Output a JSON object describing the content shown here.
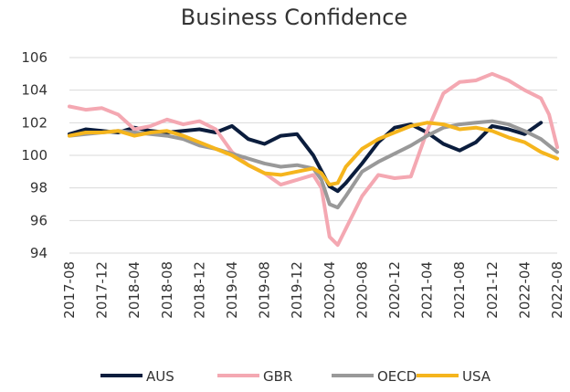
{
  "chart_data": {
    "type": "line",
    "title": "Business Confidence",
    "xlabel": "",
    "ylabel": "",
    "x_ticks": [
      "2017-08",
      "2017-12",
      "2018-04",
      "2018-08",
      "2018-12",
      "2019-04",
      "2019-08",
      "2019-12",
      "2020-04",
      "2020-08",
      "2020-12",
      "2021-04",
      "2021-08",
      "2021-12",
      "2022-04",
      "2022-08"
    ],
    "y_ticks": [
      94,
      96,
      98,
      100,
      102,
      104,
      106
    ],
    "ylim": [
      94,
      106
    ],
    "grid": "horizontal",
    "legend_position": "bottom",
    "series": [
      {
        "name": "AUS",
        "color": "#0b1d3d",
        "points": [
          [
            "2017-08",
            101.3
          ],
          [
            "2017-10",
            101.6
          ],
          [
            "2017-12",
            101.5
          ],
          [
            "2018-02",
            101.4
          ],
          [
            "2018-04",
            101.7
          ],
          [
            "2018-06",
            101.5
          ],
          [
            "2018-08",
            101.4
          ],
          [
            "2018-10",
            101.5
          ],
          [
            "2018-12",
            101.6
          ],
          [
            "2019-02",
            101.4
          ],
          [
            "2019-04",
            101.8
          ],
          [
            "2019-06",
            101.0
          ],
          [
            "2019-08",
            100.7
          ],
          [
            "2019-10",
            101.2
          ],
          [
            "2019-12",
            101.3
          ],
          [
            "2020-02",
            100.0
          ],
          [
            "2020-04",
            98.1
          ],
          [
            "2020-05",
            97.8
          ],
          [
            "2020-06",
            98.3
          ],
          [
            "2020-08",
            99.5
          ],
          [
            "2020-10",
            100.8
          ],
          [
            "2020-12",
            101.7
          ],
          [
            "2021-02",
            101.9
          ],
          [
            "2021-04",
            101.4
          ],
          [
            "2021-06",
            100.7
          ],
          [
            "2021-08",
            100.3
          ],
          [
            "2021-10",
            100.8
          ],
          [
            "2021-12",
            101.8
          ],
          [
            "2022-02",
            101.6
          ],
          [
            "2022-04",
            101.3
          ],
          [
            "2022-06",
            102.0
          ]
        ]
      },
      {
        "name": "GBR",
        "color": "#f4a8b2",
        "points": [
          [
            "2017-08",
            103.0
          ],
          [
            "2017-10",
            102.8
          ],
          [
            "2017-12",
            102.9
          ],
          [
            "2018-02",
            102.5
          ],
          [
            "2018-04",
            101.6
          ],
          [
            "2018-06",
            101.8
          ],
          [
            "2018-08",
            102.2
          ],
          [
            "2018-10",
            101.9
          ],
          [
            "2018-12",
            102.1
          ],
          [
            "2019-02",
            101.6
          ],
          [
            "2019-04",
            100.2
          ],
          [
            "2019-06",
            99.4
          ],
          [
            "2019-08",
            98.9
          ],
          [
            "2019-10",
            98.2
          ],
          [
            "2019-12",
            98.5
          ],
          [
            "2020-02",
            98.8
          ],
          [
            "2020-03",
            98.0
          ],
          [
            "2020-04",
            95.0
          ],
          [
            "2020-05",
            94.5
          ],
          [
            "2020-06",
            95.5
          ],
          [
            "2020-08",
            97.5
          ],
          [
            "2020-10",
            98.8
          ],
          [
            "2020-12",
            98.6
          ],
          [
            "2021-02",
            98.7
          ],
          [
            "2021-04",
            101.5
          ],
          [
            "2021-06",
            103.8
          ],
          [
            "2021-08",
            104.5
          ],
          [
            "2021-10",
            104.6
          ],
          [
            "2021-12",
            105.0
          ],
          [
            "2022-02",
            104.6
          ],
          [
            "2022-04",
            104.0
          ],
          [
            "2022-06",
            103.5
          ],
          [
            "2022-07",
            102.5
          ],
          [
            "2022-08",
            100.5
          ]
        ]
      },
      {
        "name": "OECD",
        "color": "#999999",
        "points": [
          [
            "2017-08",
            101.2
          ],
          [
            "2017-10",
            101.3
          ],
          [
            "2017-12",
            101.4
          ],
          [
            "2018-02",
            101.5
          ],
          [
            "2018-04",
            101.4
          ],
          [
            "2018-06",
            101.3
          ],
          [
            "2018-08",
            101.2
          ],
          [
            "2018-10",
            101.0
          ],
          [
            "2018-12",
            100.6
          ],
          [
            "2019-02",
            100.4
          ],
          [
            "2019-04",
            100.1
          ],
          [
            "2019-06",
            99.8
          ],
          [
            "2019-08",
            99.5
          ],
          [
            "2019-10",
            99.3
          ],
          [
            "2019-12",
            99.4
          ],
          [
            "2020-02",
            99.2
          ],
          [
            "2020-03",
            98.5
          ],
          [
            "2020-04",
            97.0
          ],
          [
            "2020-05",
            96.8
          ],
          [
            "2020-06",
            97.5
          ],
          [
            "2020-08",
            99.0
          ],
          [
            "2020-10",
            99.6
          ],
          [
            "2020-12",
            100.1
          ],
          [
            "2021-02",
            100.6
          ],
          [
            "2021-04",
            101.2
          ],
          [
            "2021-06",
            101.7
          ],
          [
            "2021-08",
            101.9
          ],
          [
            "2021-10",
            102.0
          ],
          [
            "2021-12",
            102.1
          ],
          [
            "2022-02",
            101.9
          ],
          [
            "2022-04",
            101.5
          ],
          [
            "2022-06",
            101.0
          ],
          [
            "2022-08",
            100.2
          ]
        ]
      },
      {
        "name": "USA",
        "color": "#f5b51d",
        "points": [
          [
            "2017-08",
            101.2
          ],
          [
            "2017-10",
            101.4
          ],
          [
            "2017-12",
            101.4
          ],
          [
            "2018-02",
            101.5
          ],
          [
            "2018-04",
            101.2
          ],
          [
            "2018-06",
            101.4
          ],
          [
            "2018-08",
            101.5
          ],
          [
            "2018-10",
            101.2
          ],
          [
            "2018-12",
            100.8
          ],
          [
            "2019-02",
            100.4
          ],
          [
            "2019-04",
            100.0
          ],
          [
            "2019-06",
            99.4
          ],
          [
            "2019-08",
            98.9
          ],
          [
            "2019-10",
            98.8
          ],
          [
            "2019-12",
            99.0
          ],
          [
            "2020-02",
            99.2
          ],
          [
            "2020-03",
            98.9
          ],
          [
            "2020-04",
            98.2
          ],
          [
            "2020-05",
            98.3
          ],
          [
            "2020-06",
            99.3
          ],
          [
            "2020-08",
            100.4
          ],
          [
            "2020-10",
            101.0
          ],
          [
            "2020-12",
            101.4
          ],
          [
            "2021-02",
            101.8
          ],
          [
            "2021-04",
            102.0
          ],
          [
            "2021-06",
            101.9
          ],
          [
            "2021-08",
            101.6
          ],
          [
            "2021-10",
            101.7
          ],
          [
            "2021-12",
            101.5
          ],
          [
            "2022-02",
            101.1
          ],
          [
            "2022-04",
            100.8
          ],
          [
            "2022-06",
            100.2
          ],
          [
            "2022-08",
            99.8
          ]
        ]
      }
    ]
  }
}
